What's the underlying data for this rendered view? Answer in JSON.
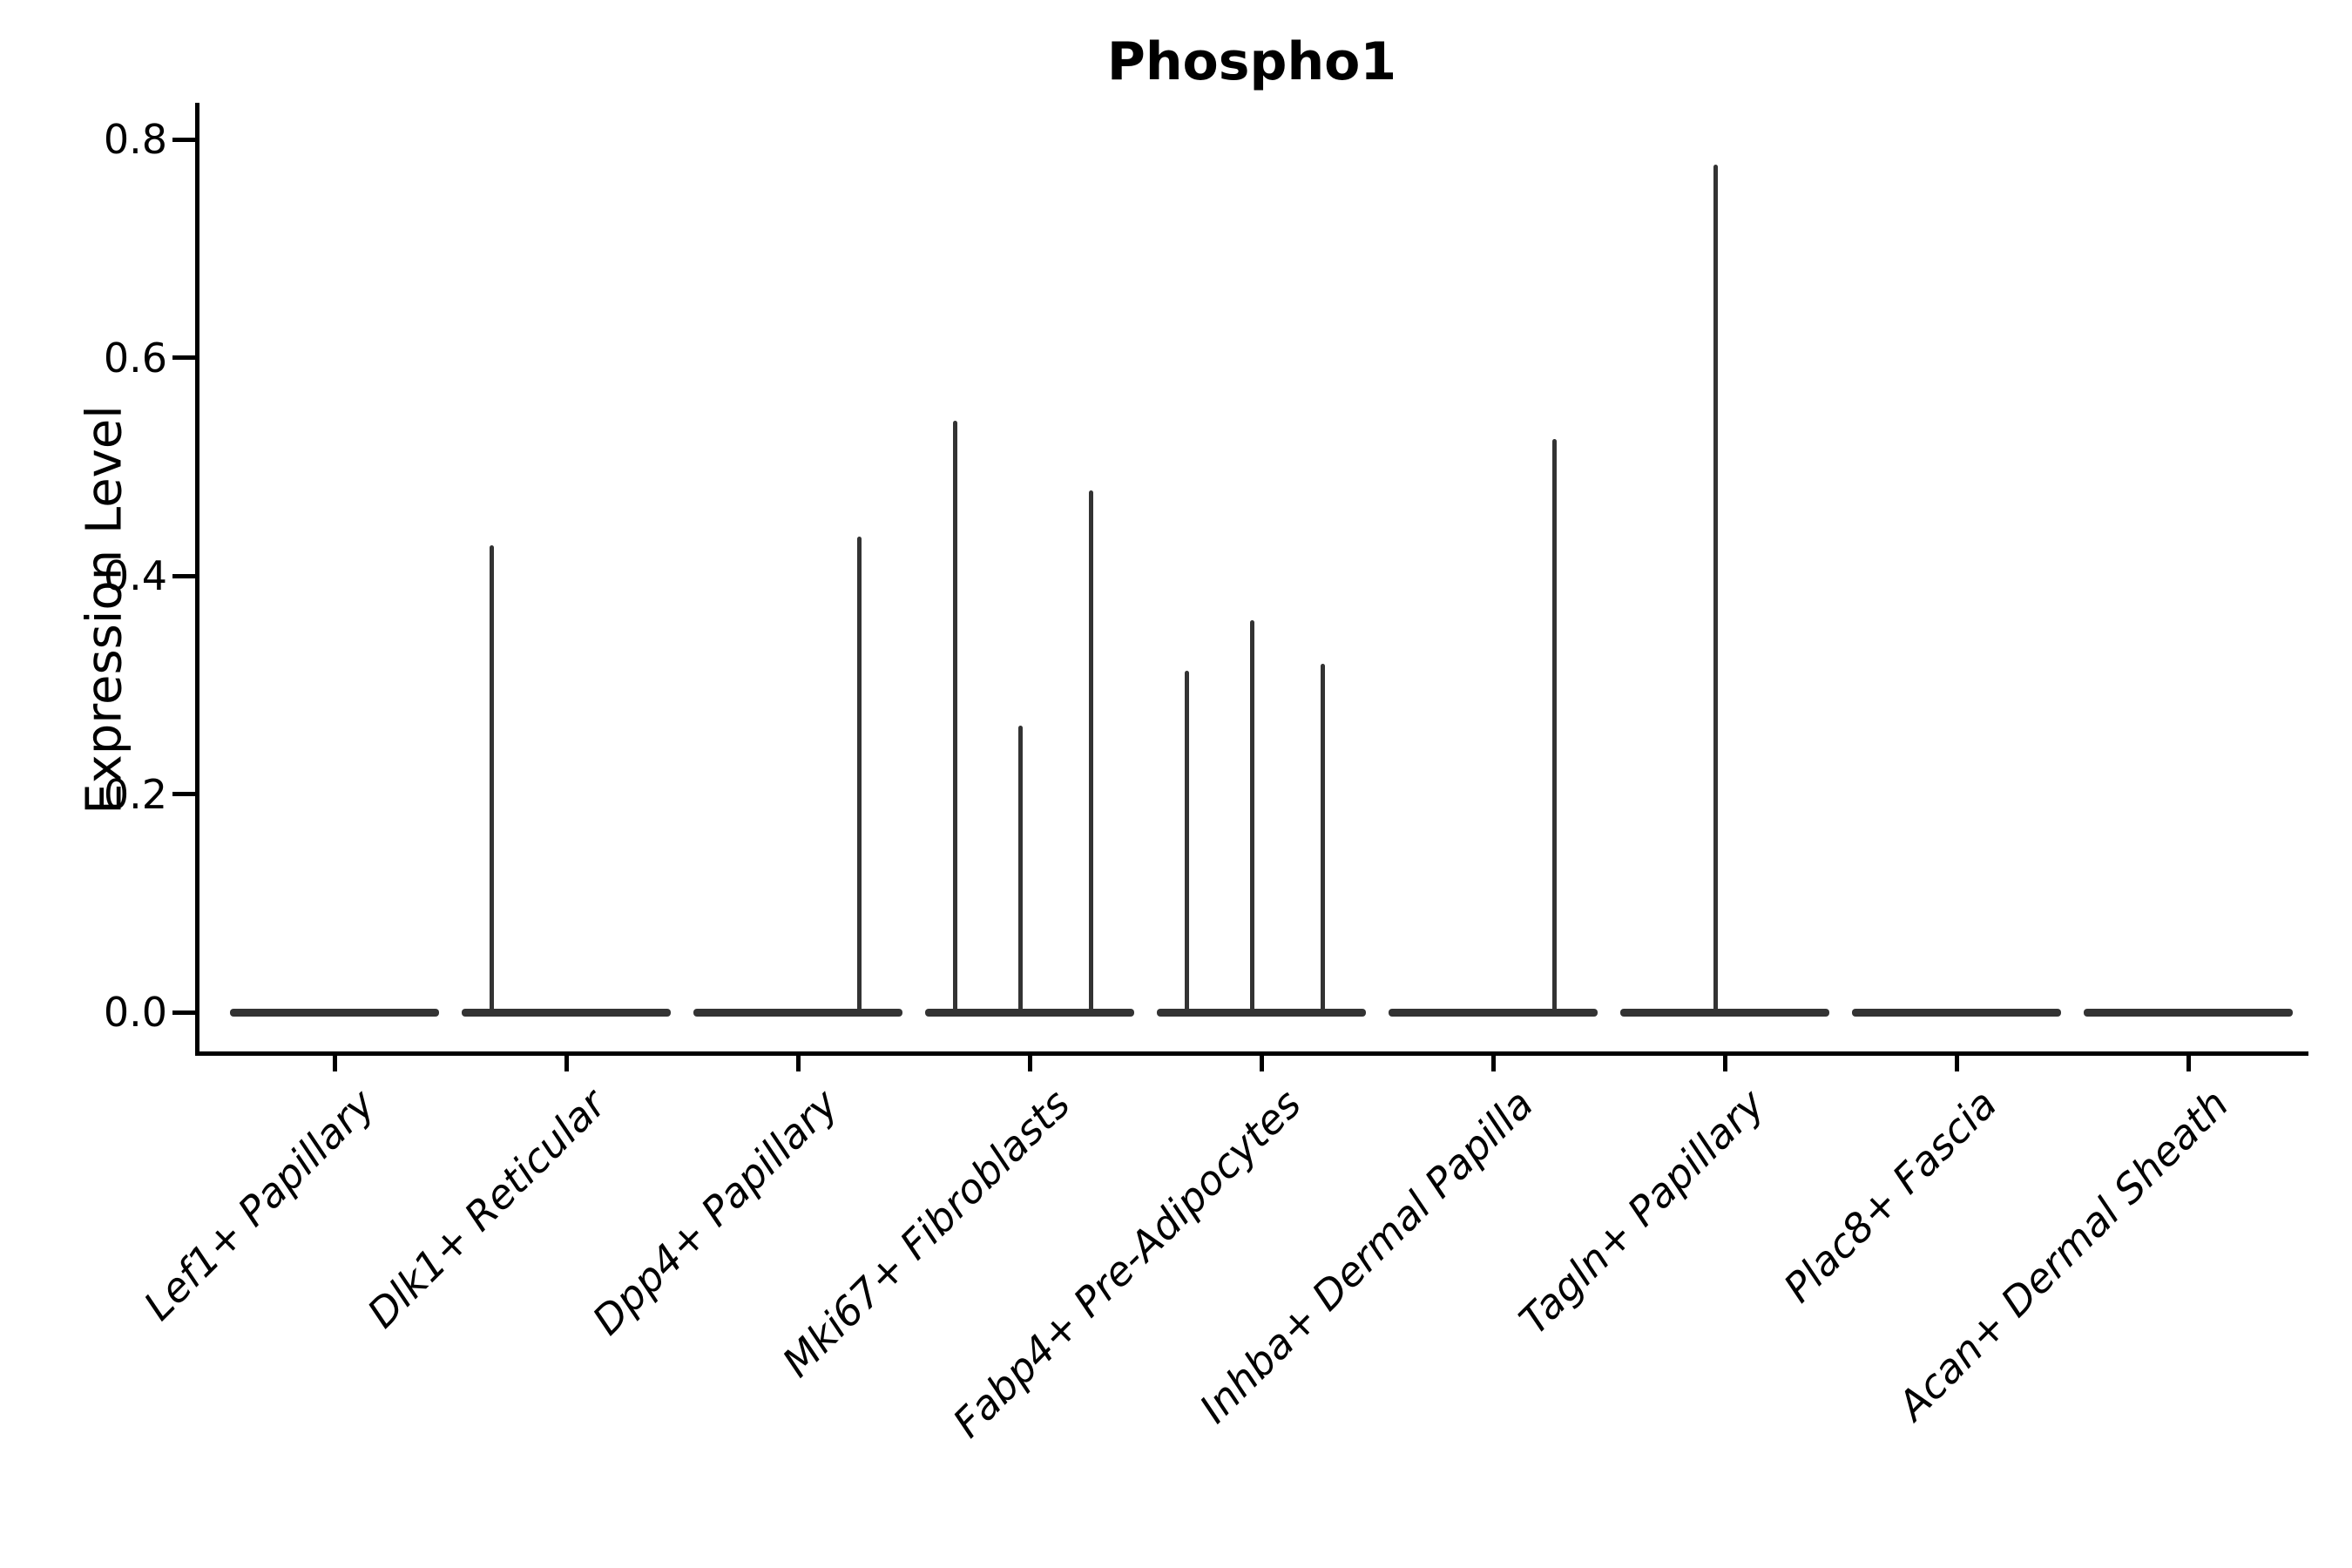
{
  "chart_data": {
    "type": "violin",
    "title": "Phospho1",
    "xlabel": "",
    "ylabel": "Expression Level",
    "ylim": [
      0.0,
      0.8
    ],
    "yticks": [
      "0.0",
      "0.2",
      "0.4",
      "0.6",
      "0.8"
    ],
    "grid": false,
    "legend": "none",
    "violin_color": "#333333",
    "axis_color": "#000000",
    "baseline_value": 0.0,
    "categories": [
      "Lef1+ Papillary",
      "Dlk1+ Reticular",
      "Dpp4+ Papillary",
      "Mki67+ Fibroblasts",
      "Fabp4+ Pre-Adipocytes",
      "Inhba+ Dermal Papilla",
      "Tagln+ Papillary",
      "Plac8+ Fascia",
      "Acan+ Dermal Sheath"
    ],
    "violins": [
      {
        "category": "Lef1+ Papillary",
        "spikes": []
      },
      {
        "category": "Dlk1+ Reticular",
        "spikes": [
          {
            "slot": "left",
            "max": 0.428
          }
        ]
      },
      {
        "category": "Dpp4+ Papillary",
        "spikes": [
          {
            "slot": "right",
            "max": 0.436
          }
        ]
      },
      {
        "category": "Mki67+ Fibroblasts",
        "spikes": [
          {
            "slot": "left",
            "max": 0.542
          },
          {
            "slot": "center",
            "max": 0.263
          },
          {
            "slot": "right",
            "max": 0.478
          }
        ]
      },
      {
        "category": "Fabp4+ Pre-Adipocytes",
        "spikes": [
          {
            "slot": "left",
            "max": 0.313
          },
          {
            "slot": "center",
            "max": 0.359
          },
          {
            "slot": "right",
            "max": 0.319
          }
        ]
      },
      {
        "category": "Inhba+ Dermal Papilla",
        "spikes": [
          {
            "slot": "right",
            "max": 0.525
          }
        ]
      },
      {
        "category": "Tagln+ Papillary",
        "spikes": [
          {
            "slot": "center",
            "max": 0.777
          }
        ]
      },
      {
        "category": "Plac8+ Fascia",
        "spikes": []
      },
      {
        "category": "Acan+ Dermal Sheath",
        "spikes": []
      }
    ]
  }
}
